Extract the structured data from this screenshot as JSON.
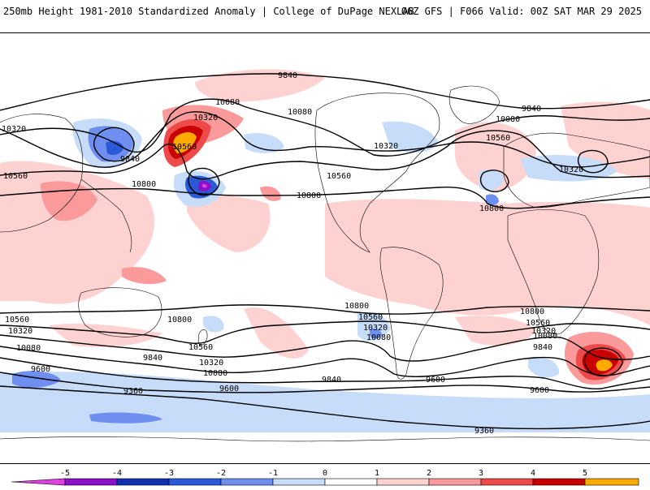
{
  "header": {
    "left_title": "250mb Height 1981-2010 Standardized Anomaly | College of DuPage NEXLAB",
    "right_title": "06Z GFS | F066 Valid: 00Z SAT MAR 29 2025"
  },
  "map": {
    "contour_labels": [
      {
        "id": "c1",
        "text": "9840"
      },
      {
        "id": "c2",
        "text": "10080"
      },
      {
        "id": "c3",
        "text": "10320"
      },
      {
        "id": "c4",
        "text": "10560"
      },
      {
        "id": "c5",
        "text": "10320"
      },
      {
        "id": "c6",
        "text": "9840"
      },
      {
        "id": "c7",
        "text": "10560"
      },
      {
        "id": "c8",
        "text": "10800"
      },
      {
        "id": "c9",
        "text": "10080"
      },
      {
        "id": "c10",
        "text": "10320"
      },
      {
        "id": "c11",
        "text": "10560"
      },
      {
        "id": "c12",
        "text": "10800"
      },
      {
        "id": "c13",
        "text": "9840"
      },
      {
        "id": "c14",
        "text": "10080"
      },
      {
        "id": "c15",
        "text": "10560"
      },
      {
        "id": "c16",
        "text": "10320"
      },
      {
        "id": "c17",
        "text": "10800"
      },
      {
        "id": "c18",
        "text": "10560"
      },
      {
        "id": "c19",
        "text": "10320"
      },
      {
        "id": "c20",
        "text": "10080"
      },
      {
        "id": "c21",
        "text": "9600"
      },
      {
        "id": "c22",
        "text": "9360"
      },
      {
        "id": "c23",
        "text": "10800"
      },
      {
        "id": "c24",
        "text": "10560"
      },
      {
        "id": "c25",
        "text": "9840"
      },
      {
        "id": "c26",
        "text": "10320"
      },
      {
        "id": "c27",
        "text": "10080"
      },
      {
        "id": "c28",
        "text": "9600"
      },
      {
        "id": "c29",
        "text": "10800"
      },
      {
        "id": "c30",
        "text": "10560"
      },
      {
        "id": "c31",
        "text": "10320"
      },
      {
        "id": "c32",
        "text": "10080"
      },
      {
        "id": "c33",
        "text": "9840"
      },
      {
        "id": "c34",
        "text": "10800"
      },
      {
        "id": "c35",
        "text": "10560"
      },
      {
        "id": "c36",
        "text": "10320"
      },
      {
        "id": "c37",
        "text": "10080"
      },
      {
        "id": "c38",
        "text": "9840"
      },
      {
        "id": "c39",
        "text": "9600"
      },
      {
        "id": "c40",
        "text": "9600"
      },
      {
        "id": "c41",
        "text": "9360"
      }
    ]
  },
  "colorbar": {
    "ticks": [
      "-5",
      "-4",
      "-3",
      "-2",
      "-1",
      "0",
      "1",
      "2",
      "3",
      "4",
      "5"
    ],
    "colors": [
      "#e040e0",
      "#8b10c8",
      "#1030b0",
      "#2a5ad8",
      "#6f8ff0",
      "#c6dcf8",
      "#ffffff",
      "#ffd2d2",
      "#fa9a9a",
      "#ee4a4a",
      "#c80000",
      "#ffaa00",
      "#ffd400"
    ]
  }
}
